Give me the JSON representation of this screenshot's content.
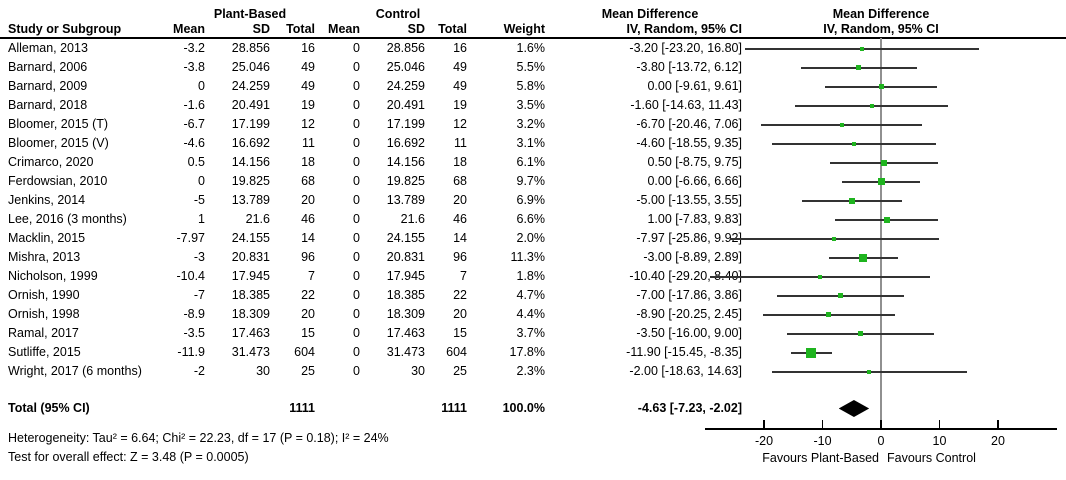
{
  "header": {
    "study_col": "Study or Subgroup",
    "group_pb": "Plant-Based",
    "group_ctrl": "Control",
    "md_table": "Mean Difference",
    "iv_table": "IV, Random, 95% CI",
    "md_plot": "Mean Difference",
    "iv_plot": "IV, Random, 95% CI",
    "cols": {
      "mean1": "Mean",
      "sd1": "SD",
      "total1": "Total",
      "mean2": "Mean",
      "sd2": "SD",
      "total2": "Total",
      "weight": "Weight"
    }
  },
  "footer": {
    "heterogeneity": "Heterogeneity: Tau² = 6.64; Chi² = 22.23, df = 17 (P = 0.18); I² = 24%",
    "overall": "Test for overall effect: Z = 3.48 (P = 0.0005)"
  },
  "colors": {
    "marker_green": "#1fb41f",
    "ci_line": "#333333",
    "zero_line": "#909090",
    "axis": "#000000",
    "diamond": "#000000"
  },
  "chart_data": {
    "type": "scatter",
    "variant": "forest-plot",
    "title": "Mean Difference",
    "effect_measure": "IV, Random, 95% CI",
    "xlim": [
      -30,
      30
    ],
    "ticks": [
      -20,
      -10,
      0,
      10,
      20
    ],
    "favours_left": "Favours Plant-Based",
    "favours_right": "Favours Control",
    "studies": [
      {
        "name": "Alleman, 2013",
        "mean_pb": "-3.2",
        "sd_pb": "28.856",
        "total_pb": "16",
        "mean_c": "0",
        "sd_c": "28.856",
        "total_c": "16",
        "weight": "1.6%",
        "weight_pct": 1.6,
        "ci_text": "-3.20 [-23.20, 16.80]",
        "est": -3.2,
        "lo": -23.2,
        "hi": 16.8
      },
      {
        "name": "Barnard, 2006",
        "mean_pb": "-3.8",
        "sd_pb": "25.046",
        "total_pb": "49",
        "mean_c": "0",
        "sd_c": "25.046",
        "total_c": "49",
        "weight": "5.5%",
        "weight_pct": 5.5,
        "ci_text": "-3.80 [-13.72, 6.12]",
        "est": -3.8,
        "lo": -13.72,
        "hi": 6.12
      },
      {
        "name": "Barnard, 2009",
        "mean_pb": "0",
        "sd_pb": "24.259",
        "total_pb": "49",
        "mean_c": "0",
        "sd_c": "24.259",
        "total_c": "49",
        "weight": "5.8%",
        "weight_pct": 5.8,
        "ci_text": "0.00 [-9.61, 9.61]",
        "est": 0,
        "lo": -9.61,
        "hi": 9.61
      },
      {
        "name": "Barnard, 2018",
        "mean_pb": "-1.6",
        "sd_pb": "20.491",
        "total_pb": "19",
        "mean_c": "0",
        "sd_c": "20.491",
        "total_c": "19",
        "weight": "3.5%",
        "weight_pct": 3.5,
        "ci_text": "-1.60 [-14.63, 11.43]",
        "est": -1.6,
        "lo": -14.63,
        "hi": 11.43
      },
      {
        "name": "Bloomer, 2015 (T)",
        "mean_pb": "-6.7",
        "sd_pb": "17.199",
        "total_pb": "12",
        "mean_c": "0",
        "sd_c": "17.199",
        "total_c": "12",
        "weight": "3.2%",
        "weight_pct": 3.2,
        "ci_text": "-6.70 [-20.46, 7.06]",
        "est": -6.7,
        "lo": -20.46,
        "hi": 7.06
      },
      {
        "name": "Bloomer, 2015 (V)",
        "mean_pb": "-4.6",
        "sd_pb": "16.692",
        "total_pb": "11",
        "mean_c": "0",
        "sd_c": "16.692",
        "total_c": "11",
        "weight": "3.1%",
        "weight_pct": 3.1,
        "ci_text": "-4.60 [-18.55, 9.35]",
        "est": -4.6,
        "lo": -18.55,
        "hi": 9.35
      },
      {
        "name": "Crimarco, 2020",
        "mean_pb": "0.5",
        "sd_pb": "14.156",
        "total_pb": "18",
        "mean_c": "0",
        "sd_c": "14.156",
        "total_c": "18",
        "weight": "6.1%",
        "weight_pct": 6.1,
        "ci_text": "0.50 [-8.75, 9.75]",
        "est": 0.5,
        "lo": -8.75,
        "hi": 9.75
      },
      {
        "name": "Ferdowsian, 2010",
        "mean_pb": "0",
        "sd_pb": "19.825",
        "total_pb": "68",
        "mean_c": "0",
        "sd_c": "19.825",
        "total_c": "68",
        "weight": "9.7%",
        "weight_pct": 9.7,
        "ci_text": "0.00 [-6.66, 6.66]",
        "est": 0,
        "lo": -6.66,
        "hi": 6.66
      },
      {
        "name": "Jenkins, 2014",
        "mean_pb": "-5",
        "sd_pb": "13.789",
        "total_pb": "20",
        "mean_c": "0",
        "sd_c": "13.789",
        "total_c": "20",
        "weight": "6.9%",
        "weight_pct": 6.9,
        "ci_text": "-5.00 [-13.55, 3.55]",
        "est": -5,
        "lo": -13.55,
        "hi": 3.55
      },
      {
        "name": "Lee, 2016 (3 months)",
        "mean_pb": "1",
        "sd_pb": "21.6",
        "total_pb": "46",
        "mean_c": "0",
        "sd_c": "21.6",
        "total_c": "46",
        "weight": "6.6%",
        "weight_pct": 6.6,
        "ci_text": "1.00 [-7.83, 9.83]",
        "est": 1,
        "lo": -7.83,
        "hi": 9.83
      },
      {
        "name": "Macklin, 2015",
        "mean_pb": "-7.97",
        "sd_pb": "24.155",
        "total_pb": "14",
        "mean_c": "0",
        "sd_c": "24.155",
        "total_c": "14",
        "weight": "2.0%",
        "weight_pct": 2.0,
        "ci_text": "-7.97 [-25.86, 9.92]",
        "est": -7.97,
        "lo": -25.86,
        "hi": 9.92
      },
      {
        "name": "Mishra, 2013",
        "mean_pb": "-3",
        "sd_pb": "20.831",
        "total_pb": "96",
        "mean_c": "0",
        "sd_c": "20.831",
        "total_c": "96",
        "weight": "11.3%",
        "weight_pct": 11.3,
        "ci_text": "-3.00 [-8.89, 2.89]",
        "est": -3,
        "lo": -8.89,
        "hi": 2.89
      },
      {
        "name": "Nicholson, 1999",
        "mean_pb": "-10.4",
        "sd_pb": "17.945",
        "total_pb": "7",
        "mean_c": "0",
        "sd_c": "17.945",
        "total_c": "7",
        "weight": "1.8%",
        "weight_pct": 1.8,
        "ci_text": "-10.40 [-29.20, 8.40]",
        "est": -10.4,
        "lo": -29.2,
        "hi": 8.4
      },
      {
        "name": "Ornish, 1990",
        "mean_pb": "-7",
        "sd_pb": "18.385",
        "total_pb": "22",
        "mean_c": "0",
        "sd_c": "18.385",
        "total_c": "22",
        "weight": "4.7%",
        "weight_pct": 4.7,
        "ci_text": "-7.00 [-17.86, 3.86]",
        "est": -7,
        "lo": -17.86,
        "hi": 3.86
      },
      {
        "name": "Ornish, 1998",
        "mean_pb": "-8.9",
        "sd_pb": "18.309",
        "total_pb": "20",
        "mean_c": "0",
        "sd_c": "18.309",
        "total_c": "20",
        "weight": "4.4%",
        "weight_pct": 4.4,
        "ci_text": "-8.90 [-20.25, 2.45]",
        "est": -8.9,
        "lo": -20.25,
        "hi": 2.45
      },
      {
        "name": "Ramal, 2017",
        "mean_pb": "-3.5",
        "sd_pb": "17.463",
        "total_pb": "15",
        "mean_c": "0",
        "sd_c": "17.463",
        "total_c": "15",
        "weight": "3.7%",
        "weight_pct": 3.7,
        "ci_text": "-3.50 [-16.00, 9.00]",
        "est": -3.5,
        "lo": -16,
        "hi": 9
      },
      {
        "name": "Sutliffe, 2015",
        "mean_pb": "-11.9",
        "sd_pb": "31.473",
        "total_pb": "604",
        "mean_c": "0",
        "sd_c": "31.473",
        "total_c": "604",
        "weight": "17.8%",
        "weight_pct": 17.8,
        "ci_text": "-11.90 [-15.45, -8.35]",
        "est": -11.9,
        "lo": -15.45,
        "hi": -8.35
      },
      {
        "name": "Wright, 2017 (6 months)",
        "mean_pb": "-2",
        "sd_pb": "30",
        "total_pb": "25",
        "mean_c": "0",
        "sd_c": "30",
        "total_c": "25",
        "weight": "2.3%",
        "weight_pct": 2.3,
        "ci_text": "-2.00 [-18.63, 14.63]",
        "est": -2,
        "lo": -18.63,
        "hi": 14.63
      }
    ],
    "total": {
      "label": "Total (95% CI)",
      "total_pb": "1111",
      "total_c": "1111",
      "weight": "100.0%",
      "ci_text": "-4.63 [-7.23, -2.02]",
      "est": -4.63,
      "lo": -7.23,
      "hi": -2.02
    }
  }
}
